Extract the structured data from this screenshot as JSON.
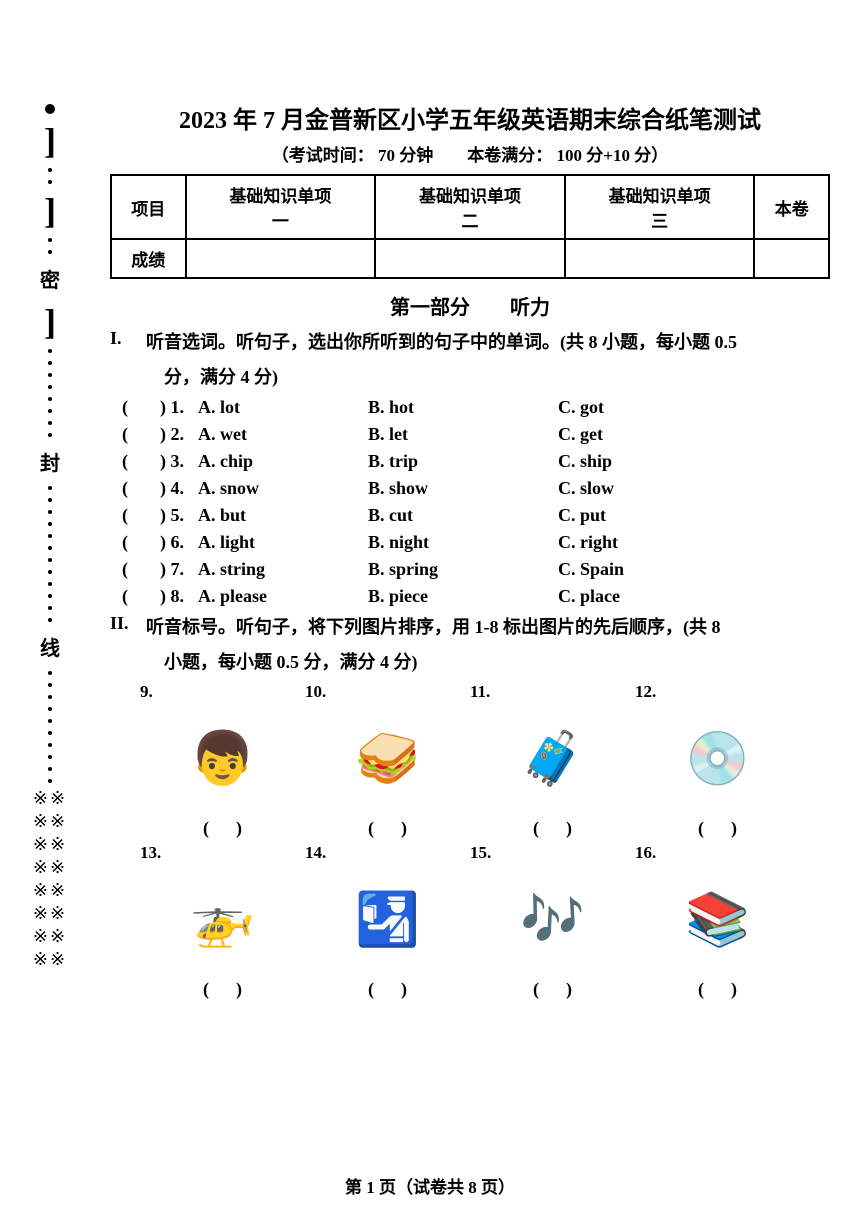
{
  "title": "2023 年 7 月金普新区小学五年级英语期末综合纸笔测试",
  "subtitle_left": "（考试时间：",
  "subtitle_time": "70 分钟",
  "subtitle_mid": "本卷满分：",
  "subtitle_score": "100 分+10 分）",
  "table": {
    "headers": [
      "项目",
      "基础知识单项\n一",
      "基础知识单项\n二",
      "基础知识单项\n三",
      "本卷"
    ],
    "row_label": "成绩"
  },
  "part_title": "第一部分　　听力",
  "section1": {
    "num": "I.",
    "text": "听音选词。听句子，选出你所听到的句子中的单词。(共 8 小题，每小题 0.5",
    "text2": "分，满分 4 分)"
  },
  "q1": [
    {
      "n": "1",
      "a": "A. lot",
      "b": "B. hot",
      "c": "C. got"
    },
    {
      "n": "2",
      "a": "A. wet",
      "b": "B. let",
      "c": "C. get"
    },
    {
      "n": "3",
      "a": "A. chip",
      "b": "B. trip",
      "c": "C. ship"
    },
    {
      "n": "4",
      "a": "A. snow",
      "b": "B. show",
      "c": "C. slow"
    },
    {
      "n": "5",
      "a": "A. but",
      "b": "B. cut",
      "c": "C. put"
    },
    {
      "n": "6",
      "a": "A. light",
      "b": "B. night",
      "c": "C. right"
    },
    {
      "n": "7",
      "a": "A. string",
      "b": "B. spring",
      "c": "C. Spain"
    },
    {
      "n": "8",
      "a": "A. please",
      "b": "B. piece",
      "c": "C. place"
    }
  ],
  "section2": {
    "num": "II.",
    "text": "听音标号。听句子，将下列图片排序，用 1-8 标出图片的先后顺序，(共 8",
    "text2": "小题，每小题 0.5 分，满分 4 分)"
  },
  "images": [
    {
      "n": "9.",
      "icon": "👦"
    },
    {
      "n": "10.",
      "icon": "🥪"
    },
    {
      "n": "11.",
      "icon": "🧳"
    },
    {
      "n": "12.",
      "icon": "💿"
    },
    {
      "n": "13.",
      "icon": "🚁"
    },
    {
      "n": "14.",
      "icon": "🛂"
    },
    {
      "n": "15.",
      "icon": "🎶"
    },
    {
      "n": "16.",
      "icon": "📚"
    }
  ],
  "answer_paren_l": "(",
  "answer_paren_r": ")",
  "footer": "第 1 页（试卷共 8 页）",
  "margin": {
    "chars": [
      "密",
      "封",
      "线"
    ]
  }
}
